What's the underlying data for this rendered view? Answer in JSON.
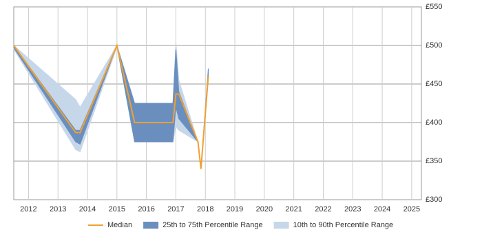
{
  "chart_data": {
    "type": "line",
    "x": [
      2011.5,
      2013.6,
      2013.75,
      2015,
      2015.6,
      2016.9,
      2017,
      2017.1,
      2017.75,
      2017.85,
      2018.1
    ],
    "series": [
      {
        "name": "Median",
        "color": "#f0a030",
        "values": [
          500,
          387,
          387,
          500,
          400,
          400,
          437,
          437,
          375,
          340,
          460
        ]
      }
    ],
    "bands": [
      {
        "name": "10th to 90th Percentile Range",
        "color": "#c6d7ea",
        "lower": [
          495,
          365,
          362,
          498,
          375,
          375,
          395,
          390,
          375,
          340,
          460
        ],
        "upper": [
          500,
          430,
          420,
          500,
          425,
          425,
          505,
          455,
          375,
          340,
          470
        ]
      },
      {
        "name": "25th to 75th Percentile Range",
        "color": "#6a8fbf",
        "lower": [
          497,
          375,
          372,
          500,
          375,
          375,
          420,
          405,
          375,
          340,
          460
        ],
        "upper": [
          500,
          390,
          390,
          500,
          425,
          425,
          495,
          440,
          375,
          340,
          470
        ]
      }
    ],
    "xlim": [
      2011.5,
      2025.33
    ],
    "xticks": [
      2012,
      2013,
      2014,
      2015,
      2016,
      2017,
      2018,
      2019,
      2020,
      2021,
      2022,
      2023,
      2024,
      2025
    ],
    "ylim": [
      300,
      550
    ],
    "yticks": [
      {
        "value": 300,
        "label": "£300"
      },
      {
        "value": 350,
        "label": "£350"
      },
      {
        "value": 400,
        "label": "£400"
      },
      {
        "value": 450,
        "label": "£450"
      },
      {
        "value": 500,
        "label": "£500"
      },
      {
        "value": 550,
        "label": "£550"
      }
    ],
    "grid": true
  }
}
